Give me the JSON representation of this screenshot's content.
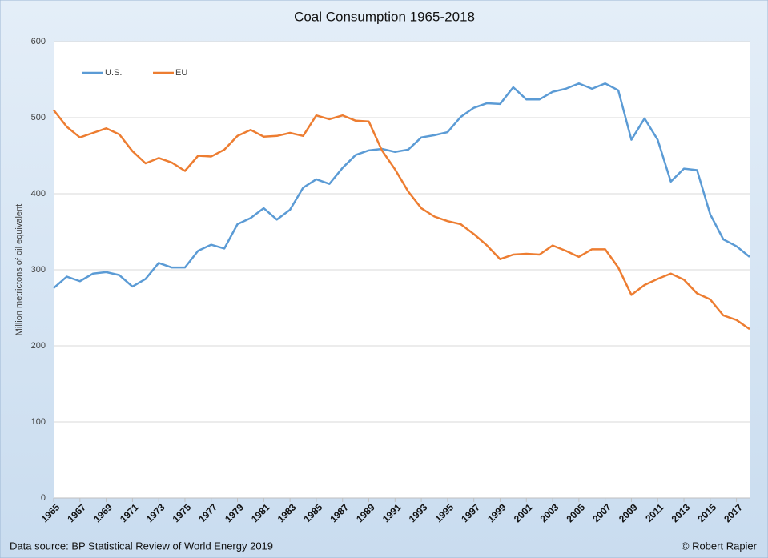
{
  "chart_data": {
    "type": "line",
    "title": "Coal Consumption 1965-2018",
    "ylabel": "Million metrictons of oil equivalent",
    "source": "Data source: BP Statistical Review of World Energy 2019",
    "credit": "© Robert Rapier",
    "x": [
      1965,
      1966,
      1967,
      1968,
      1969,
      1970,
      1971,
      1972,
      1973,
      1974,
      1975,
      1976,
      1977,
      1978,
      1979,
      1980,
      1981,
      1982,
      1983,
      1984,
      1985,
      1986,
      1987,
      1988,
      1989,
      1990,
      1991,
      1992,
      1993,
      1994,
      1995,
      1996,
      1997,
      1998,
      1999,
      2000,
      2001,
      2002,
      2003,
      2004,
      2005,
      2006,
      2007,
      2008,
      2009,
      2010,
      2011,
      2012,
      2013,
      2014,
      2015,
      2016,
      2017,
      2018
    ],
    "series": [
      {
        "name": "U.S.",
        "color": "#5b9bd5",
        "values": [
          276,
          291,
          285,
          295,
          297,
          293,
          278,
          288,
          309,
          303,
          303,
          325,
          333,
          328,
          360,
          368,
          381,
          366,
          379,
          408,
          419,
          413,
          434,
          451,
          457,
          459,
          455,
          458,
          474,
          477,
          481,
          501,
          513,
          519,
          518,
          540,
          524,
          524,
          534,
          538,
          545,
          538,
          545,
          536,
          471,
          499,
          471,
          416,
          433,
          431,
          373,
          340,
          331,
          317
        ]
      },
      {
        "name": "EU",
        "color": "#ed7d31",
        "values": [
          510,
          488,
          474,
          480,
          486,
          478,
          456,
          440,
          447,
          441,
          430,
          450,
          449,
          458,
          476,
          484,
          475,
          476,
          480,
          476,
          503,
          498,
          503,
          496,
          495,
          457,
          432,
          403,
          381,
          370,
          364,
          360,
          347,
          332,
          314,
          320,
          321,
          320,
          332,
          325,
          317,
          327,
          327,
          303,
          267,
          280,
          288,
          295,
          287,
          269,
          261,
          240,
          234,
          222
        ]
      }
    ],
    "xlim": [
      1965,
      2018
    ],
    "xticks": [
      1965,
      1967,
      1969,
      1971,
      1973,
      1975,
      1977,
      1979,
      1981,
      1983,
      1985,
      1987,
      1989,
      1991,
      1993,
      1995,
      1997,
      1999,
      2001,
      2003,
      2005,
      2007,
      2009,
      2011,
      2013,
      2015,
      2017
    ],
    "ylim": [
      0,
      600
    ],
    "yticks": [
      0,
      100,
      200,
      300,
      400,
      500,
      600
    ],
    "grid": true,
    "legend": "top-left"
  }
}
